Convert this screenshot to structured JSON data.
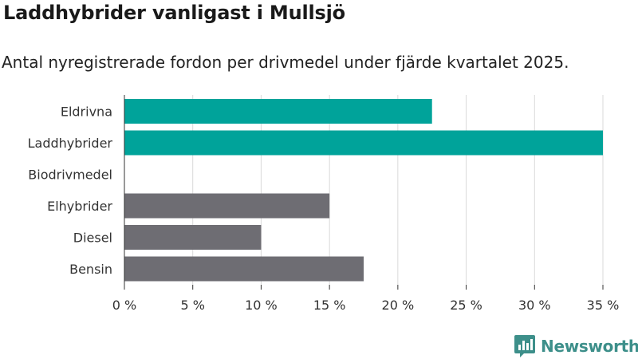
{
  "header": {
    "title": "Laddhybrider vanligast i Mullsjö",
    "subtitle": "Antal nyregistrerade fordon per drivmedel under fjärde kvartalet 2025."
  },
  "chart_data": {
    "type": "bar",
    "orientation": "horizontal",
    "categories": [
      "Eldrivna",
      "Laddhybrider",
      "Biodrivmedel",
      "Elhybrider",
      "Diesel",
      "Bensin"
    ],
    "values": [
      22.5,
      35,
      0,
      15,
      10,
      17.5
    ],
    "unit": "%",
    "xlim": [
      0,
      35
    ],
    "xticks": [
      0,
      5,
      10,
      15,
      20,
      25,
      30,
      35
    ],
    "tick_labels": [
      "0 %",
      "5 %",
      "10 %",
      "15 %",
      "20 %",
      "25 %",
      "30 %",
      "35 %"
    ],
    "grid": "vertical",
    "colors": {
      "highlight": "#00a39a",
      "default": "#6e6d73",
      "grid": "#d9d9d9",
      "axis": "#333333"
    },
    "highlight_categories": [
      "Eldrivna",
      "Laddhybrider"
    ]
  },
  "brand": {
    "name": "Newsworthy",
    "icon": "newsworthy-logo-icon",
    "color": "#3d8f8a"
  }
}
